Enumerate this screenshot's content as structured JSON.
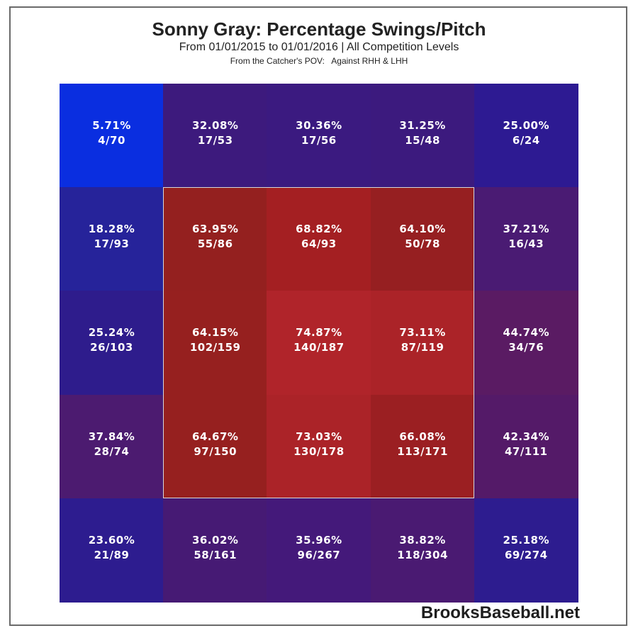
{
  "title": "Sonny Gray: Percentage Swings/Pitch",
  "subtitle": "From 01/01/2015 to 01/01/2016 | All Competition Levels",
  "subtitle2": "From the Catcher's POV:   Against RHH & LHH",
  "watermark": "BrooksBaseball.net",
  "chart_data": {
    "type": "heatmap",
    "title": "Sonny Gray: Percentage Swings/Pitch",
    "subtitle": "From 01/01/2015 to 01/01/2016 | All Competition Levels",
    "rows": 5,
    "cols": 5,
    "cells": [
      [
        {
          "pct": "5.71%",
          "count": "4/70",
          "value": 5.71
        },
        {
          "pct": "32.08%",
          "count": "17/53",
          "value": 32.08
        },
        {
          "pct": "30.36%",
          "count": "17/56",
          "value": 30.36
        },
        {
          "pct": "31.25%",
          "count": "15/48",
          "value": 31.25
        },
        {
          "pct": "25.00%",
          "count": "6/24",
          "value": 25.0
        }
      ],
      [
        {
          "pct": "18.28%",
          "count": "17/93",
          "value": 18.28
        },
        {
          "pct": "63.95%",
          "count": "55/86",
          "value": 63.95
        },
        {
          "pct": "68.82%",
          "count": "64/93",
          "value": 68.82
        },
        {
          "pct": "64.10%",
          "count": "50/78",
          "value": 64.1
        },
        {
          "pct": "37.21%",
          "count": "16/43",
          "value": 37.21
        }
      ],
      [
        {
          "pct": "25.24%",
          "count": "26/103",
          "value": 25.24
        },
        {
          "pct": "64.15%",
          "count": "102/159",
          "value": 64.15
        },
        {
          "pct": "74.87%",
          "count": "140/187",
          "value": 74.87
        },
        {
          "pct": "73.11%",
          "count": "87/119",
          "value": 73.11
        },
        {
          "pct": "44.74%",
          "count": "34/76",
          "value": 44.74
        }
      ],
      [
        {
          "pct": "37.84%",
          "count": "28/74",
          "value": 37.84
        },
        {
          "pct": "64.67%",
          "count": "97/150",
          "value": 64.67
        },
        {
          "pct": "73.03%",
          "count": "130/178",
          "value": 73.03
        },
        {
          "pct": "66.08%",
          "count": "113/171",
          "value": 66.08
        },
        {
          "pct": "42.34%",
          "count": "47/111",
          "value": 42.34
        }
      ],
      [
        {
          "pct": "23.60%",
          "count": "21/89",
          "value": 23.6
        },
        {
          "pct": "36.02%",
          "count": "58/161",
          "value": 36.02
        },
        {
          "pct": "35.96%",
          "count": "96/267",
          "value": 35.96
        },
        {
          "pct": "38.82%",
          "count": "118/304",
          "value": 38.82
        },
        {
          "pct": "25.18%",
          "count": "69/274",
          "value": 25.18
        }
      ]
    ],
    "colors": [
      [
        "#0a2ee0",
        "#3d1a7d",
        "#3b1a80",
        "#3c1a7e",
        "#2d1a92"
      ],
      [
        "#26239a",
        "#94201f",
        "#a41f22",
        "#961f21",
        "#4a1b73"
      ],
      [
        "#2e1c8c",
        "#96201f",
        "#b0242a",
        "#ab2328",
        "#5a1b63"
      ],
      [
        "#4c1b70",
        "#96201f",
        "#ab2328",
        "#9b1f22",
        "#541a68"
      ],
      [
        "#2d1c8f",
        "#461a74",
        "#44197a",
        "#4a1a72",
        "#2d1c8f"
      ]
    ],
    "strike_zone": "inner 3x3 cells"
  }
}
